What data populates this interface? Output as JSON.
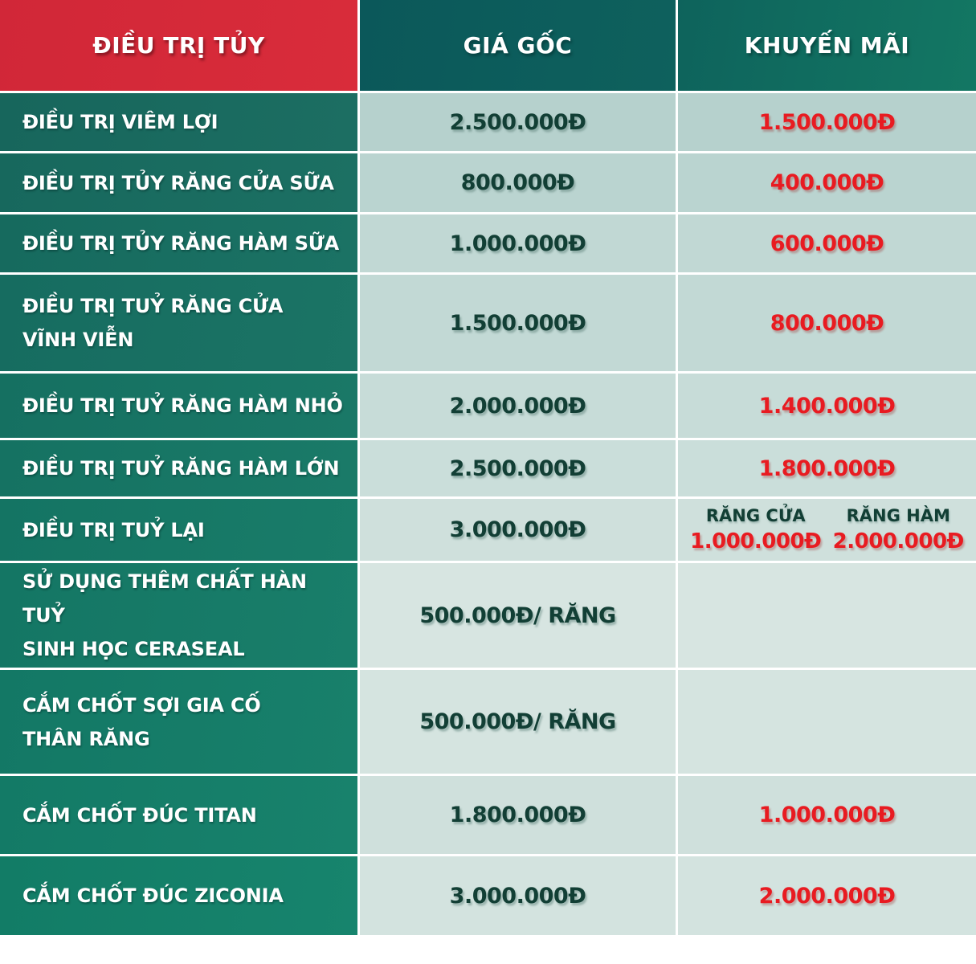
{
  "title": "Bảng giá điều trị tủy",
  "colors": {
    "header_red": "#d5293b",
    "header_teal": "#0c595b",
    "row_teal_top": "#17665c",
    "row_teal_bottom": "#17846d",
    "cell_mint_top": "#b6d1cd",
    "cell_mint_bottom": "#d3e3df",
    "price_green": "#123f35",
    "promo_red": "#e81b21",
    "gap_white": "#ffffff"
  },
  "header": {
    "treatment": "ĐIỀU TRỊ TỦY",
    "original": "GIÁ GỐC",
    "promo": "KHUYẾN MÃI"
  },
  "rows": [
    {
      "name": "ĐIỀU TRỊ VIÊM LỢI",
      "original": "2.500.000Đ",
      "promo": "1.500.000Đ"
    },
    {
      "name": "ĐIỀU TRỊ  TỦY RĂNG CỬA SỮA",
      "original": "800.000Đ",
      "promo": "400.000Đ"
    },
    {
      "name": "ĐIỀU TRỊ TỦY RĂNG HÀM SỮA",
      "original": "1.000.000Đ",
      "promo": "600.000Đ"
    },
    {
      "name": "ĐIỀU TRỊ TUỶ RĂNG CỬA\nVĨNH VIỄN",
      "original": "1.500.000Đ",
      "promo": "800.000Đ"
    },
    {
      "name": "ĐIỀU TRỊ TUỶ RĂNG HÀM NHỎ",
      "original": "2.000.000Đ",
      "promo": "1.400.000Đ"
    },
    {
      "name": "ĐIỀU TRỊ TUỶ RĂNG HÀM LỚN",
      "original": "2.500.000Đ",
      "promo": "1.800.000Đ"
    },
    {
      "name": "ĐIỀU TRỊ TUỶ LẠI",
      "original": "3.000.000Đ",
      "promo_split": {
        "left_label": "RĂNG CỬA",
        "left_price": "1.000.000Đ",
        "right_label": "RĂNG HÀM",
        "right_price": "2.000.000Đ"
      }
    },
    {
      "name": "SỬ DỤNG THÊM CHẤT HÀN TUỶ\nSINH HỌC CERASEAL",
      "original": "500.000Đ/ RĂNG",
      "promo": ""
    },
    {
      "name": "CẮM CHỐT SỢI GIA CỐ\nTHÂN RĂNG",
      "original": "500.000Đ/ RĂNG",
      "promo": ""
    },
    {
      "name": "CẮM CHỐT ĐÚC TITAN",
      "original": "1.800.000Đ",
      "promo": "1.000.000Đ"
    },
    {
      "name": "CẮM CHỐT ĐÚC ZICONIA",
      "original": "3.000.000Đ",
      "promo": "2.000.000Đ"
    }
  ]
}
